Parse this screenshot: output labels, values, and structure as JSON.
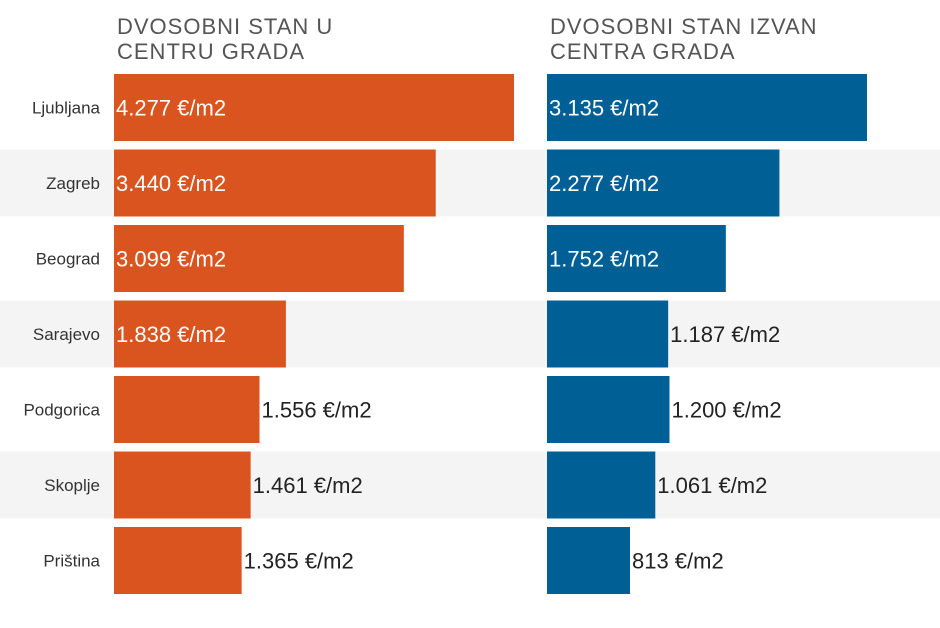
{
  "chart_data": {
    "type": "bar",
    "orientation": "horizontal",
    "categories": [
      "Ljubljana",
      "Zagreb",
      "Beograd",
      "Sarajevo",
      "Podgorica",
      "Skoplje",
      "Priština"
    ],
    "series": [
      {
        "name": "DVOSOBNI STAN U CENTRU GRADA",
        "color": "#d9541e",
        "values": [
          4277,
          3440,
          3099,
          1838,
          1556,
          1461,
          1365
        ],
        "labels": [
          "4.277 €/m2",
          "3.440 €/m2",
          "3.099 €/m2",
          "1.838 €/m2",
          "1.556 €/m2",
          "1.461 €/m2",
          "1.365 €/m2"
        ]
      },
      {
        "name": "DVOSOBNI STAN IZVAN CENTRA GRADA",
        "color": "#006096",
        "values": [
          3135,
          2277,
          1752,
          1187,
          1200,
          1061,
          813
        ],
        "labels": [
          "3.135 €/m2",
          "2.277 €/m2",
          "1.752 €/m2",
          "1.187 €/m2",
          "1.200 €/m2",
          "1.061 €/m2",
          "813 €/m2"
        ]
      }
    ],
    "unit": "€/m2",
    "stripe_color": "#f4f4f4"
  }
}
